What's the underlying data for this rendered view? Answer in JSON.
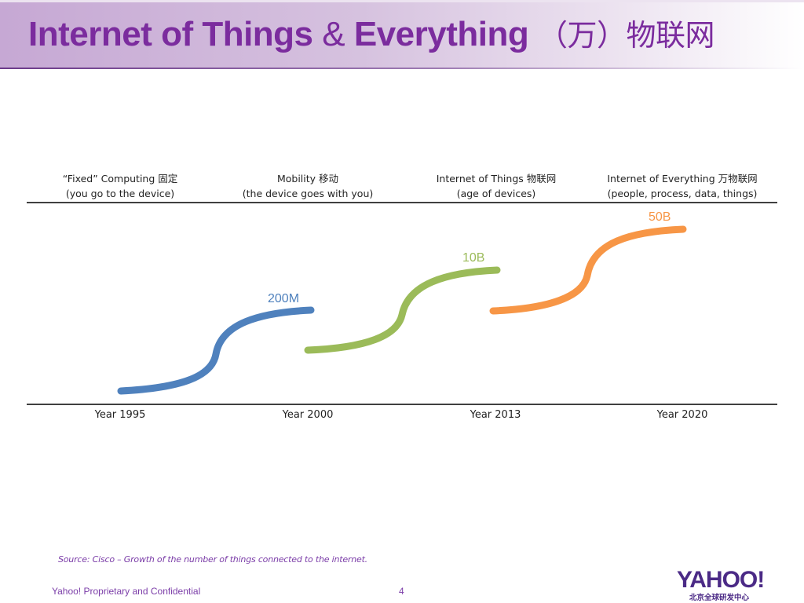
{
  "header": {
    "title_en_1": "Internet of Things",
    "title_amp": "&",
    "title_en_2": "Everything",
    "title_cn": "（万）物联网"
  },
  "eras": [
    {
      "line1": "“Fixed” Computing 固定",
      "line2": "(you go to the device)"
    },
    {
      "line1": "Mobility 移动",
      "line2": "(the device goes with you)"
    },
    {
      "line1": "Internet of Things 物联网",
      "line2": "(age of devices)"
    },
    {
      "line1": "Internet of Everything 万物联网",
      "line2": "(people, process, data, things)"
    }
  ],
  "curves": [
    {
      "label": "200M",
      "color": "#4f81bd"
    },
    {
      "label": "10B",
      "color": "#9bbb59"
    },
    {
      "label": "50B",
      "color": "#f79646"
    }
  ],
  "years": [
    "Year 1995",
    "Year 2000",
    "Year 2013",
    "Year 2020"
  ],
  "source": "Source: Cisco – Growth of the number of things connected to the internet.",
  "footer": {
    "confidential": "Yahoo! Proprietary and Confidential",
    "page_number": "4",
    "logo_text": "YAHOO!",
    "logo_subtext": "北京全球研发中心"
  }
}
